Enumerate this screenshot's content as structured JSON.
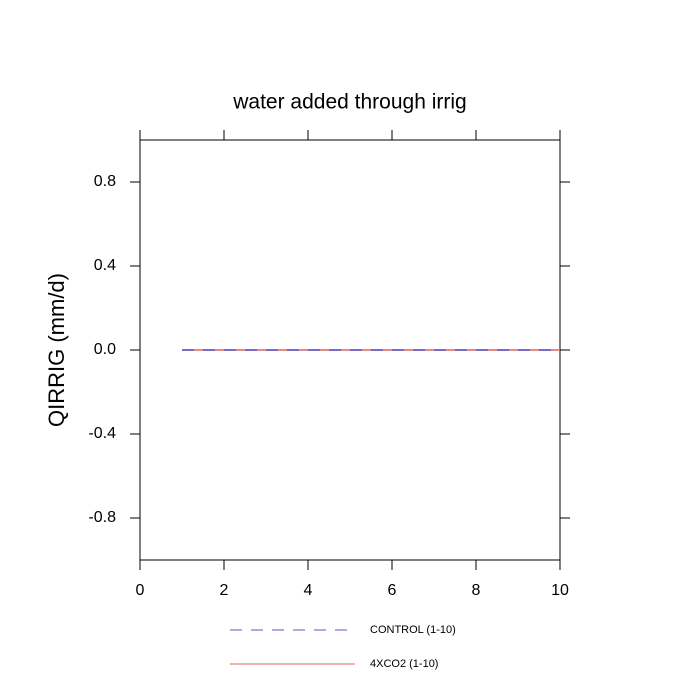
{
  "chart_data": {
    "type": "line",
    "title": "water added through irrig",
    "y_label": "QIRRIG  (mm/d)",
    "x": [
      1,
      2,
      3,
      4,
      5,
      6,
      7,
      8,
      9,
      10
    ],
    "series": [
      {
        "name": "CONTROL (1-10)",
        "color": "#5555cc",
        "dash": true,
        "values": [
          0,
          0,
          0,
          0,
          0,
          0,
          0,
          0,
          0,
          0
        ]
      },
      {
        "name": "4XCO2 (1-10)",
        "color": "#e06060",
        "dash": false,
        "values": [
          0,
          0,
          0,
          0,
          0,
          0,
          0,
          0,
          0,
          0
        ]
      }
    ],
    "xlim": [
      0,
      10
    ],
    "xticks": [
      0,
      2,
      4,
      6,
      8,
      10
    ],
    "ylim": [
      -1,
      1
    ],
    "yticks": [
      -0.8,
      -0.4,
      {
        "value": 0,
        "label": "0.0"
      },
      0.4,
      0.8
    ],
    "grid": false
  }
}
